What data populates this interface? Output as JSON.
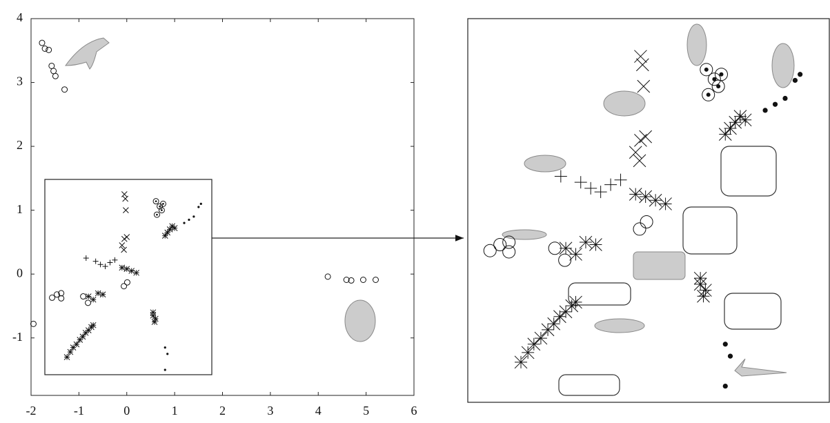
{
  "chart_data": {
    "type": "scatter",
    "xlim": [
      -2,
      6
    ],
    "ylim": [
      -1.9,
      4
    ],
    "xticks": [
      -2,
      -1,
      0,
      1,
      2,
      3,
      4,
      5,
      6
    ],
    "yticks": [
      -1,
      0,
      1,
      2,
      3,
      4
    ],
    "zoom_xlim": [
      -1.7,
      1.76
    ],
    "zoom_ylim": [
      -1.56,
      1.49
    ],
    "color": "#111111",
    "series": [
      {
        "marker": "circle",
        "x": [
          -1.77,
          -1.71,
          -1.63,
          -1.57,
          -1.53,
          -1.49,
          -1.3,
          4.2,
          4.59,
          4.69,
          4.94,
          5.2,
          -1.95,
          -1.56,
          -1.46,
          -1.37,
          -1.37,
          -0.91,
          -0.81,
          -0.06,
          0.01
        ],
        "y": [
          3.62,
          3.53,
          3.51,
          3.26,
          3.18,
          3.1,
          2.89,
          -0.04,
          -0.09,
          -0.1,
          -0.09,
          -0.09,
          -0.78,
          -0.37,
          -0.32,
          -0.38,
          -0.3,
          -0.35,
          -0.45,
          -0.19,
          -0.13
        ]
      },
      {
        "marker": "circle-dot",
        "x": [
          0.61,
          0.69,
          0.76,
          0.63,
          0.73
        ],
        "y": [
          1.14,
          1.06,
          1.1,
          0.93,
          1.0
        ]
      },
      {
        "marker": "star",
        "x": [
          -1.25,
          -1.18,
          -1.12,
          -1.05,
          -0.98,
          -0.92,
          -0.86,
          -0.8,
          -0.74,
          -0.7,
          0.8,
          0.85,
          0.9,
          0.95,
          1.0,
          0.55,
          0.6,
          0.55,
          0.58,
          -0.1,
          0.0,
          0.1,
          0.2,
          -0.8,
          -0.6,
          -0.5,
          -0.7
        ],
        "y": [
          -1.3,
          -1.22,
          -1.15,
          -1.1,
          -1.03,
          -0.98,
          -0.92,
          -0.88,
          -0.83,
          -0.8,
          0.6,
          0.65,
          0.7,
          0.75,
          0.72,
          -0.65,
          -0.7,
          -0.6,
          -0.75,
          0.1,
          0.08,
          0.05,
          0.02,
          -0.35,
          -0.3,
          -0.32,
          -0.4
        ]
      },
      {
        "marker": "x",
        "x": [
          -0.05,
          -0.03,
          -0.02,
          -0.05,
          0.0,
          -0.1,
          -0.06
        ],
        "y": [
          1.25,
          1.18,
          1.0,
          0.55,
          0.58,
          0.45,
          0.38
        ]
      },
      {
        "marker": "plus",
        "x": [
          -0.85,
          -0.65,
          -0.55,
          -0.45,
          -0.35,
          -0.25
        ],
        "y": [
          0.25,
          0.2,
          0.15,
          0.12,
          0.18,
          0.22
        ]
      },
      {
        "marker": "dot",
        "x": [
          1.55,
          1.5,
          1.4,
          1.3,
          1.2,
          0.8,
          0.85,
          0.8
        ],
        "y": [
          1.1,
          1.05,
          0.9,
          0.85,
          0.8,
          -1.15,
          -1.25,
          -1.5
        ]
      }
    ]
  }
}
